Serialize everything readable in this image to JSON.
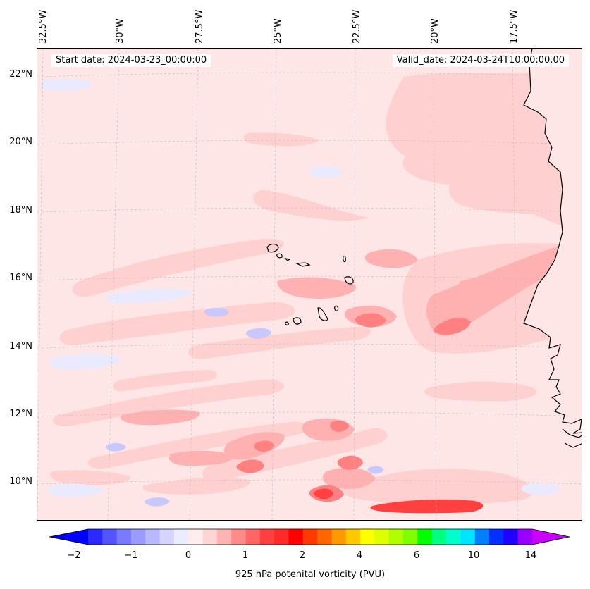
{
  "map": {
    "start_date": "Start date: 2024-03-23_00:00:00",
    "valid_date": "Valid_date: 2024-03-24T10:00:00.00",
    "longitude_labels": [
      "32.5°W",
      "30°W",
      "27.5°W",
      "25°W",
      "22.5°W",
      "20°W",
      "17.5°W"
    ],
    "latitude_labels": [
      "22°N",
      "20°N",
      "18°N",
      "16°N",
      "14°N",
      "12°N",
      "10°N"
    ],
    "extent": {
      "lon_min": -32.7,
      "lon_max": -15.2,
      "lat_min": 8.9,
      "lat_max": 22.8
    },
    "gridlines": true,
    "features": [
      "Cape Verde islands",
      "West African coastline"
    ]
  },
  "colorbar": {
    "label": "925 hPa potenital vorticity (PVU)",
    "tick_labels": [
      "−2",
      "−1",
      "0",
      "1",
      "2",
      "4",
      "6",
      "10",
      "14"
    ],
    "levels": [
      -2,
      -1.75,
      -1.5,
      -1.25,
      -1,
      -0.75,
      -0.5,
      -0.25,
      0,
      0.25,
      0.5,
      0.75,
      1,
      1.25,
      1.5,
      1.75,
      2,
      2.5,
      3,
      3.5,
      4,
      4.5,
      5,
      5.5,
      6,
      7,
      8,
      9,
      10,
      11,
      12,
      13,
      14,
      15
    ],
    "colors": [
      "#0000ff",
      "#2a2aff",
      "#5454ff",
      "#7a7aff",
      "#9a9aff",
      "#b8b8ff",
      "#d4d4ff",
      "#ececff",
      "#ffecec",
      "#ffd4d4",
      "#ffb4b4",
      "#ff8a8a",
      "#ff6666",
      "#ff4040",
      "#ff2a2a",
      "#ff0000",
      "#ff3a00",
      "#ff6600",
      "#ff9900",
      "#ffc800",
      "#ffff00",
      "#ddff00",
      "#b0ff00",
      "#7fff00",
      "#00ff00",
      "#00ff80",
      "#00ffcc",
      "#00e5ff",
      "#0080ff",
      "#0030ff",
      "#2000ff",
      "#9900ff",
      "#cc00ff"
    ],
    "extend": "both"
  }
}
